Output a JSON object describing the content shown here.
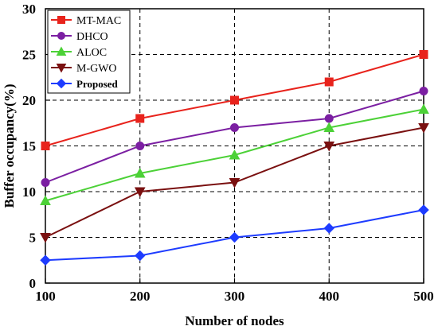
{
  "chart_data": {
    "type": "line",
    "x": [
      100,
      200,
      300,
      400,
      500
    ],
    "xlabel": "Number of nodes",
    "ylabel": "Buffer occupancy(%)",
    "xlim": [
      100,
      500
    ],
    "ylim": [
      0,
      30
    ],
    "xticks": [
      "100",
      "200",
      "300",
      "400",
      "500"
    ],
    "yticks": [
      "0",
      "5",
      "10",
      "15",
      "20",
      "25",
      "30"
    ],
    "grid": "dashed",
    "legend_position": "top-left",
    "series": [
      {
        "name": "MT-MAC",
        "color": "#e8231c",
        "marker": "square",
        "values": [
          15,
          18,
          20,
          22,
          25
        ]
      },
      {
        "name": "DHCO",
        "color": "#7b1fa2",
        "marker": "circle",
        "values": [
          11,
          15,
          17,
          18,
          21
        ]
      },
      {
        "name": "ALOC",
        "color": "#4cd137",
        "marker": "triangle-up",
        "values": [
          9,
          12,
          14,
          17,
          19
        ]
      },
      {
        "name": "M-GWO",
        "color": "#7a1010",
        "marker": "triangle-down",
        "values": [
          5,
          10,
          11,
          15,
          17
        ]
      },
      {
        "name": "Proposed",
        "color": "#1e3cff",
        "marker": "diamond",
        "values": [
          2.5,
          3,
          5,
          6,
          8
        ]
      }
    ]
  }
}
